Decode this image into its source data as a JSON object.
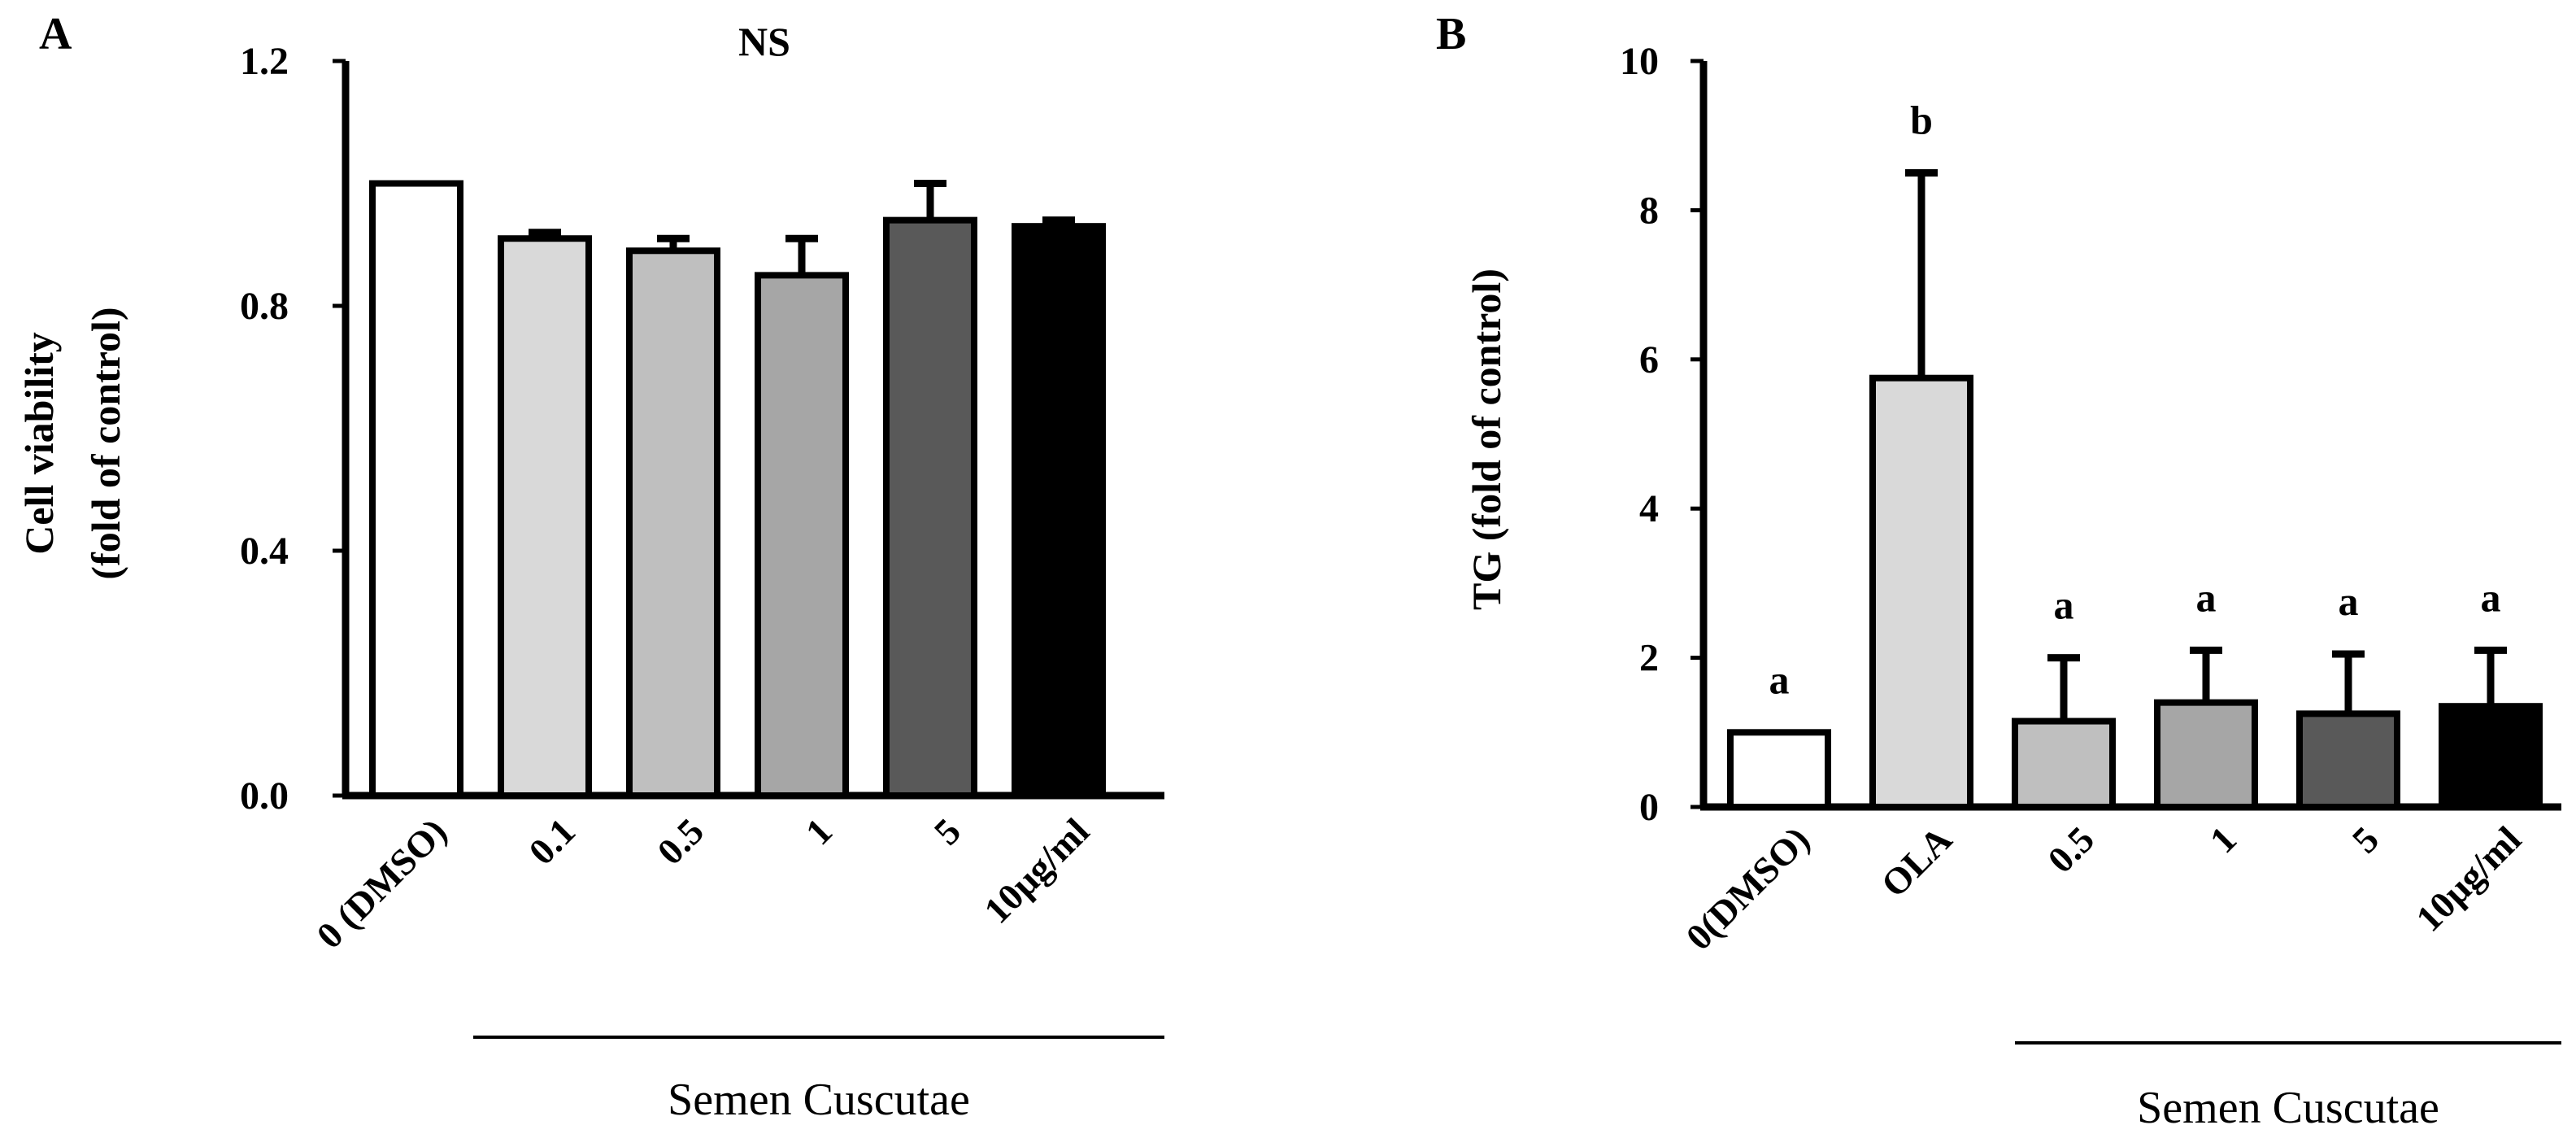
{
  "chart_data": [
    {
      "panel": "A",
      "type": "bar",
      "title": "NS",
      "ylabel_lines": [
        "Cell viability",
        "(fold of control)"
      ],
      "xlabel": "",
      "ylim": [
        0,
        1.2
      ],
      "yticks": [
        0.0,
        0.4,
        0.8,
        1.2
      ],
      "ytick_labels": [
        "0.0",
        "0.4",
        "0.8",
        "1.2"
      ],
      "grid": false,
      "categories": [
        "0 (DMSO)",
        "0.1",
        "0.5",
        "1",
        "5",
        "10µg/ml"
      ],
      "values": [
        1.0,
        0.91,
        0.89,
        0.85,
        0.94,
        0.93
      ],
      "errors": [
        0.0,
        0.01,
        0.02,
        0.06,
        0.06,
        0.01
      ],
      "colors": [
        "#ffffff",
        "#d9d9d9",
        "#bfbfbf",
        "#a6a6a6",
        "#595959",
        "#000000"
      ],
      "annotations": [],
      "group_label": "Semen Cuscutae",
      "group_start_index": 1
    },
    {
      "panel": "B",
      "type": "bar",
      "title": "",
      "ylabel_lines": [
        "TG (fold of control)"
      ],
      "xlabel": "",
      "ylim": [
        0,
        10
      ],
      "yticks": [
        0,
        2,
        4,
        6,
        8,
        10
      ],
      "ytick_labels": [
        "0",
        "2",
        "4",
        "6",
        "8",
        "10"
      ],
      "grid": false,
      "categories": [
        "0(DMSO)",
        "OLA",
        "0.5",
        "1",
        "5",
        "10µg/ml"
      ],
      "values": [
        1.0,
        5.75,
        1.15,
        1.4,
        1.25,
        1.35
      ],
      "errors": [
        0.0,
        2.75,
        0.85,
        0.7,
        0.8,
        0.75
      ],
      "colors": [
        "#ffffff",
        "#d9d9d9",
        "#bfbfbf",
        "#a6a6a6",
        "#595959",
        "#000000"
      ],
      "annotations": [
        "a",
        "b",
        "a",
        "a",
        "a",
        "a"
      ],
      "group_label": "Semen Cuscutae",
      "group_start_index": 2
    }
  ]
}
